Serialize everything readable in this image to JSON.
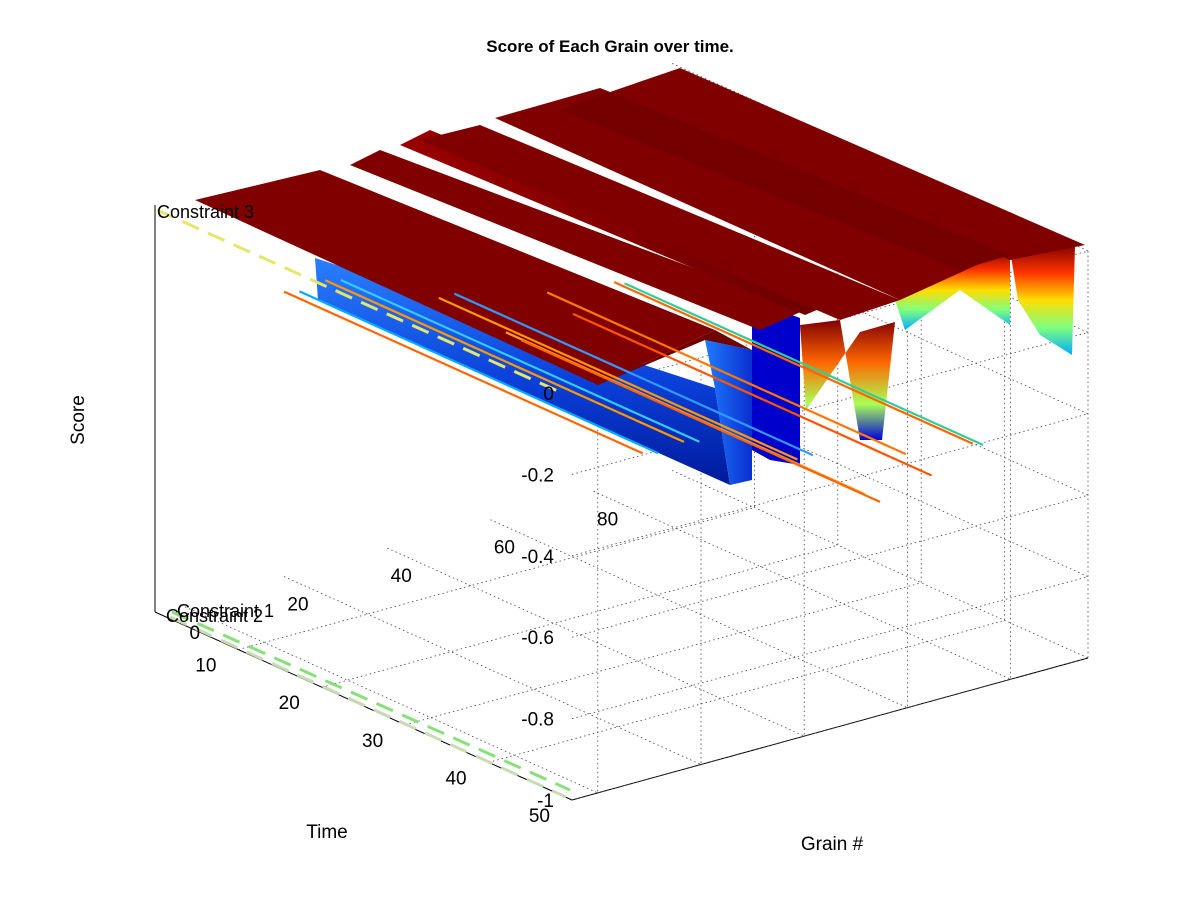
{
  "chart_data": {
    "type": "surface",
    "title": "Score of Each Grain over time.",
    "xlabel": "Grain #",
    "ylabel": "Time",
    "zlabel": "Score",
    "xlim": [
      -5,
      95
    ],
    "ylim": [
      0,
      50
    ],
    "zlim": [
      -1,
      0
    ],
    "x_ticks": [
      0,
      20,
      40,
      60,
      80
    ],
    "y_ticks": [
      10,
      20,
      30,
      40,
      50
    ],
    "z_ticks": [
      0,
      -0.2,
      -0.4,
      -0.6,
      -0.8,
      -1
    ],
    "grid": true,
    "colormap": "jet",
    "series": [
      {
        "x": 1,
        "score": 0
      },
      {
        "x": 10,
        "score": 0
      },
      {
        "x": 20,
        "score": -0.05
      },
      {
        "x": 25,
        "score": -0.18
      },
      {
        "x": 33,
        "score": -0.2
      },
      {
        "x": 40,
        "score": -0.22
      },
      {
        "x": 44,
        "score": -0.62
      },
      {
        "x": 46,
        "score": 0
      },
      {
        "x": 49,
        "score": -0.65
      },
      {
        "x": 51,
        "score": 0
      },
      {
        "x": 55,
        "score": -0.3
      },
      {
        "x": 57,
        "score": 0
      },
      {
        "x": 60,
        "score": -0.4
      },
      {
        "x": 62,
        "score": 0
      },
      {
        "x": 65,
        "score": -0.43
      },
      {
        "x": 67,
        "score": 0
      },
      {
        "x": 73,
        "score": 0
      },
      {
        "x": 80,
        "score": -0.12
      },
      {
        "x": 82,
        "score": -0.26
      },
      {
        "x": 84,
        "score": 0
      },
      {
        "x": 88,
        "score": -0.05
      },
      {
        "x": 90,
        "score": -0.35
      }
    ],
    "traces": [
      {
        "x": 20,
        "z": -0.3,
        "color": "#ff6600"
      },
      {
        "x": 23,
        "z": -0.31,
        "color": "#00aaff"
      },
      {
        "x": 28,
        "z": -0.3,
        "color": "#ff9900"
      },
      {
        "x": 31,
        "z": -0.31,
        "color": "#33ccff"
      },
      {
        "x": 50,
        "z": -0.42,
        "color": "#ff9900"
      },
      {
        "x": 53,
        "z": -0.42,
        "color": "#3399ff"
      },
      {
        "x": 63,
        "z": -0.55,
        "color": "#ff9933"
      },
      {
        "x": 66,
        "z": -0.58,
        "color": "#ff6600"
      },
      {
        "x": 71,
        "z": -0.48,
        "color": "#ff7700"
      },
      {
        "x": 76,
        "z": -0.55,
        "color": "#ff5500"
      },
      {
        "x": 84,
        "z": -0.5,
        "color": "#ff6600"
      },
      {
        "x": 86,
        "z": -0.51,
        "color": "#33cc99"
      }
    ],
    "constraints": [
      {
        "name": "Constraint 3",
        "z": 0,
        "color": "#e6e66b"
      },
      {
        "name": "Constraint 1",
        "z": -1,
        "color": "#88e07a"
      },
      {
        "name": "Constraint 2",
        "z": -1,
        "color": "#c8dcb4"
      }
    ]
  }
}
